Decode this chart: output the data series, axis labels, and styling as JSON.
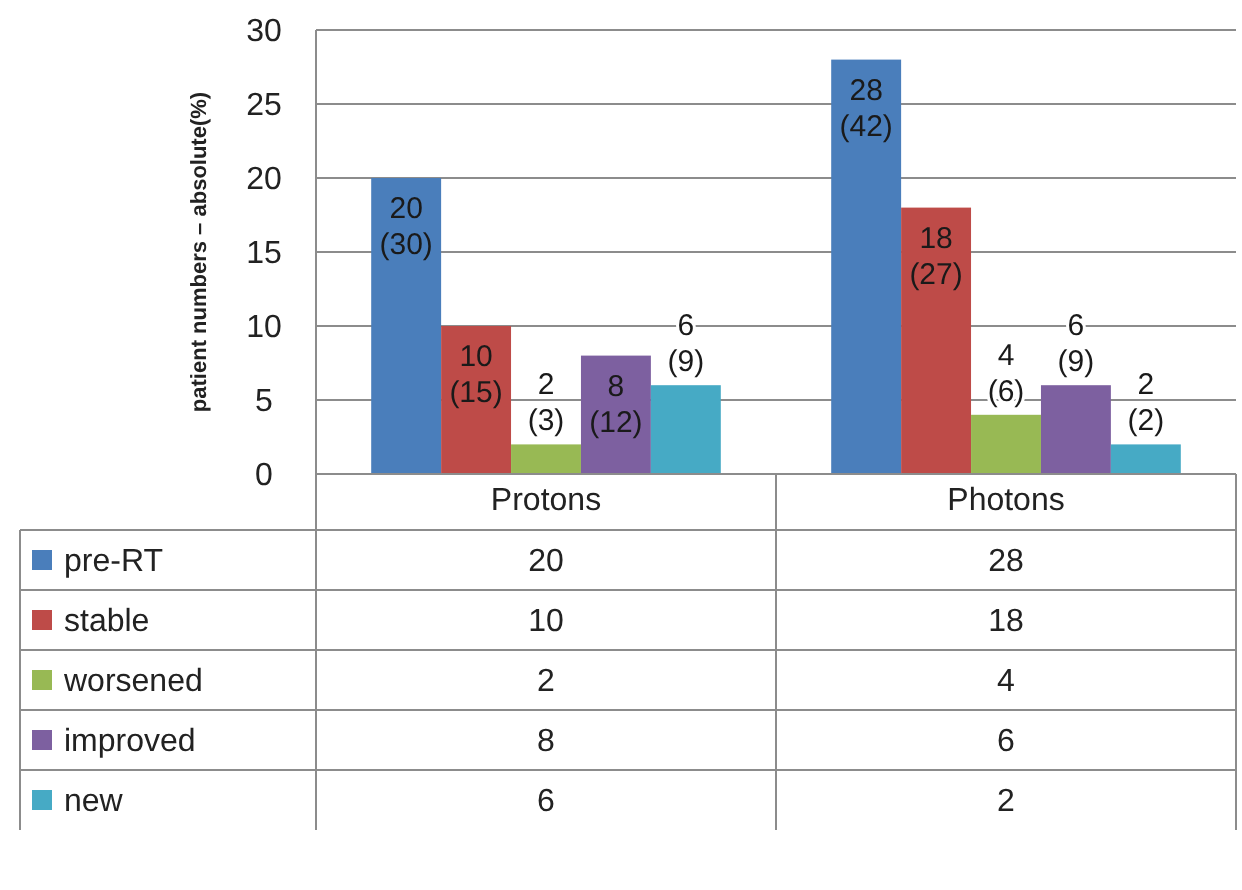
{
  "chart_data": {
    "type": "bar",
    "ylabel": "patient numbers – absolute(%)",
    "categories": [
      "Protons",
      "Photons"
    ],
    "ylim": [
      0,
      30
    ],
    "yticks": [
      0,
      5,
      10,
      15,
      20,
      25,
      30
    ],
    "grid": "y",
    "legend": "bottom",
    "annotations": [
      "20",
      "28",
      "10",
      "18",
      "2",
      "4",
      "8",
      "6",
      "6",
      "2"
    ],
    "series": [
      {
        "name": "pre-RT",
        "color": "#4a7ebb",
        "values": [
          20,
          28
        ],
        "value_labels": [
          "20 (30)",
          "28 (42)"
        ]
      },
      {
        "name": "stable",
        "color": "#be4b48",
        "values": [
          10,
          18
        ],
        "value_labels": [
          "10 (15)",
          "18 (27)"
        ]
      },
      {
        "name": "worsened",
        "color": "#98b954",
        "values": [
          2,
          4
        ],
        "value_labels": [
          "2 (3)",
          "4 (6)"
        ]
      },
      {
        "name": "improved",
        "color": "#7d60a0",
        "values": [
          8,
          6
        ],
        "value_labels": [
          "8 (12)",
          "6 (9)"
        ]
      },
      {
        "name": "new",
        "color": "#46aac5",
        "values": [
          6,
          2
        ],
        "value_labels": [
          "6 (9)",
          "2 (2)"
        ]
      }
    ]
  }
}
